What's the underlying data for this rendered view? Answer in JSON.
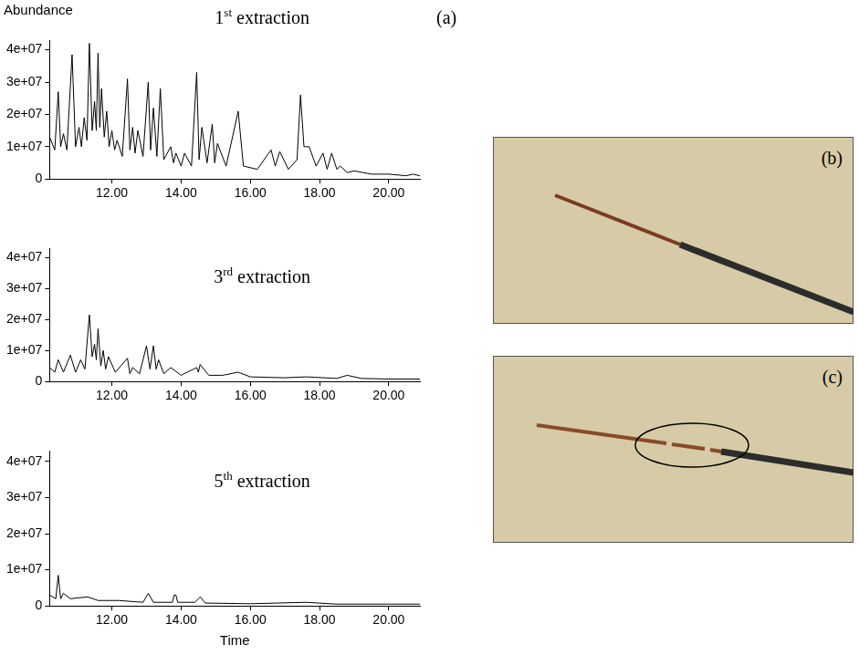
{
  "chart_data": [
    {
      "type": "line",
      "title": "1st extraction",
      "ylabel": "Abundance",
      "color": "#000000",
      "grid": false,
      "xlim": [
        10.2,
        20.9
      ],
      "ylim": [
        0,
        43000000.0
      ],
      "xticks": [
        {
          "value": 12,
          "label": "12.00"
        },
        {
          "value": 14,
          "label": "14.00"
        },
        {
          "value": 16,
          "label": "16.00"
        },
        {
          "value": 18,
          "label": "18.00"
        },
        {
          "value": 20,
          "label": "20.00"
        }
      ],
      "yticks": [
        0,
        {
          "value": 10000000.0,
          "label": "1e+07"
        },
        {
          "value": 20000000.0,
          "label": "2e+07"
        },
        {
          "value": 30000000.0,
          "label": "3e+07"
        },
        {
          "value": 40000000.0,
          "label": "4e+07"
        }
      ],
      "x": [
        10.2,
        10.35,
        10.45,
        10.52,
        10.6,
        10.7,
        10.85,
        10.95,
        11.05,
        11.12,
        11.2,
        11.28,
        11.35,
        11.43,
        11.5,
        11.55,
        11.6,
        11.65,
        11.7,
        11.78,
        11.85,
        11.92,
        12.0,
        12.08,
        12.15,
        12.3,
        12.45,
        12.52,
        12.6,
        12.67,
        12.75,
        12.9,
        13.05,
        13.12,
        13.2,
        13.3,
        13.4,
        13.5,
        13.7,
        13.78,
        13.85,
        14.0,
        14.1,
        14.3,
        14.45,
        14.52,
        14.6,
        14.75,
        14.9,
        14.97,
        15.05,
        15.3,
        15.65,
        15.8,
        16.2,
        16.6,
        16.72,
        16.85,
        17.1,
        17.35,
        17.45,
        17.55,
        17.7,
        17.9,
        18.1,
        18.22,
        18.35,
        18.5,
        18.6,
        18.8,
        19.0,
        19.5,
        20.0,
        20.5,
        20.7,
        20.9
      ],
      "values": [
        13000000.0,
        9000000.0,
        27000000.0,
        10000000.0,
        14000000.0,
        9000000.0,
        38500000.0,
        10000000.0,
        16000000.0,
        10000000.0,
        19000000.0,
        12000000.0,
        42000000.0,
        15000000.0,
        24000000.0,
        15000000.0,
        39000000.0,
        16000000.0,
        28000000.0,
        13000000.0,
        21000000.0,
        10000000.0,
        15000000.0,
        9000000.0,
        12000000.0,
        7000000.0,
        31000000.0,
        9000000.0,
        16000000.0,
        8000000.0,
        15000000.0,
        7000000.0,
        30000000.0,
        9000000.0,
        22000000.0,
        7000000.0,
        28000000.0,
        6000000.0,
        10000000.0,
        5000000.0,
        8000000.0,
        4000000.0,
        8000000.0,
        4000000.0,
        33000000.0,
        6000000.0,
        16000000.0,
        5000000.0,
        17000000.0,
        5000000.0,
        11000000.0,
        4000000.0,
        21000000.0,
        4000000.0,
        3000000.0,
        9000000.0,
        4000000.0,
        8500000.0,
        3000000.0,
        6000000.0,
        26000000.0,
        10000000.0,
        10000000.0,
        4000000.0,
        8000000.0,
        3000000.0,
        8000000.0,
        3000000.0,
        4000000.0,
        2000000.0,
        2500000.0,
        1500000.0,
        1500000.0,
        1000000.0,
        1500000.0,
        1000000.0
      ]
    },
    {
      "type": "line",
      "title": "3rd extraction",
      "color": "#000000",
      "grid": false,
      "xlim": [
        10.2,
        20.9
      ],
      "ylim": [
        0,
        43000000.0
      ],
      "xticks": [
        {
          "value": 12,
          "label": "12.00"
        },
        {
          "value": 14,
          "label": "14.00"
        },
        {
          "value": 16,
          "label": "16.00"
        },
        {
          "value": 18,
          "label": "18.00"
        },
        {
          "value": 20,
          "label": "20.00"
        }
      ],
      "yticks": [
        0,
        {
          "value": 10000000.0,
          "label": "1e+07"
        },
        {
          "value": 20000000.0,
          "label": "2e+07"
        },
        {
          "value": 30000000.0,
          "label": "3e+07"
        },
        {
          "value": 40000000.0,
          "label": "4e+07"
        }
      ],
      "x": [
        10.2,
        10.35,
        10.45,
        10.6,
        10.8,
        10.95,
        11.1,
        11.22,
        11.35,
        11.43,
        11.5,
        11.55,
        11.6,
        11.68,
        11.75,
        11.82,
        11.9,
        12.1,
        12.45,
        12.52,
        12.6,
        12.8,
        13.0,
        13.1,
        13.2,
        13.28,
        13.35,
        13.5,
        13.7,
        14.0,
        14.45,
        14.5,
        14.55,
        14.8,
        15.2,
        15.65,
        16.0,
        17.0,
        17.6,
        18.5,
        18.8,
        19.2,
        20.0,
        20.9
      ],
      "values": [
        4500000.0,
        3000000.0,
        7000000.0,
        3000000.0,
        8500000.0,
        3000000.0,
        7000000.0,
        4000000.0,
        21500000.0,
        8000000.0,
        12000000.0,
        7000000.0,
        17000000.0,
        5000000.0,
        10000000.0,
        4000000.0,
        8000000.0,
        3000000.0,
        7500000.0,
        2500000.0,
        4500000.0,
        2500000.0,
        11500000.0,
        4000000.0,
        11500000.0,
        4000000.0,
        7000000.0,
        2500000.0,
        4500000.0,
        2000000.0,
        4500000.0,
        3000000.0,
        5500000.0,
        2000000.0,
        2000000.0,
        3000000.0,
        1500000.0,
        1200000.0,
        1500000.0,
        1000000.0,
        2000000.0,
        1000000.0,
        800000.0,
        800000.0
      ]
    },
    {
      "type": "line",
      "title": "5th extraction",
      "xlabel": "Time",
      "color": "#000000",
      "grid": false,
      "xlim": [
        10.2,
        20.9
      ],
      "ylim": [
        0,
        43000000.0
      ],
      "xticks": [
        {
          "value": 12,
          "label": "12.00"
        },
        {
          "value": 14,
          "label": "14.00"
        },
        {
          "value": 16,
          "label": "16.00"
        },
        {
          "value": 18,
          "label": "18.00"
        },
        {
          "value": 20,
          "label": "20.00"
        }
      ],
      "yticks": [
        0,
        {
          "value": 10000000.0,
          "label": "1e+07"
        },
        {
          "value": 20000000.0,
          "label": "2e+07"
        },
        {
          "value": 30000000.0,
          "label": "3e+07"
        },
        {
          "value": 40000000.0,
          "label": "4e+07"
        }
      ],
      "x": [
        10.2,
        10.38,
        10.45,
        10.52,
        10.6,
        10.8,
        11.3,
        11.6,
        12.2,
        12.9,
        13.05,
        13.2,
        13.75,
        13.8,
        13.85,
        13.9,
        14.4,
        14.55,
        14.7,
        16.0,
        17.6,
        18.5,
        20.9
      ],
      "values": [
        3000000.0,
        2000000.0,
        8500000.0,
        2000000.0,
        3500000.0,
        2000000.0,
        2500000.0,
        1500000.0,
        1500000.0,
        1000000.0,
        3500000.0,
        1000000.0,
        1000000.0,
        3000000.0,
        3000000.0,
        1000000.0,
        1000000.0,
        2500000.0,
        800000.0,
        600000.0,
        1000000.0,
        500000.0,
        500000.0
      ]
    }
  ],
  "panel_label": "(a)",
  "images": [
    {
      "label": "(b)"
    },
    {
      "label": "(c)"
    }
  ]
}
